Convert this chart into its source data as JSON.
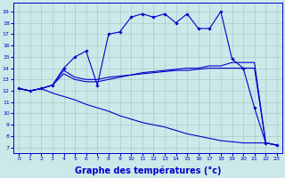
{
  "background_color": "#cce8e8",
  "grid_color": "#aacccc",
  "line_color": "#0000cc",
  "xlabel": "Graphe des températures (°c)",
  "xlabel_fontsize": 7,
  "xlim": [
    -0.5,
    23.5
  ],
  "ylim": [
    6.5,
    19.8
  ],
  "yticks": [
    7,
    8,
    9,
    10,
    11,
    12,
    13,
    14,
    15,
    16,
    17,
    18,
    19
  ],
  "xticks": [
    0,
    1,
    2,
    3,
    4,
    5,
    6,
    7,
    8,
    9,
    10,
    11,
    12,
    13,
    14,
    15,
    16,
    17,
    18,
    19,
    20,
    21,
    22,
    23
  ],
  "line_wiggly_x": [
    0,
    1,
    2,
    3,
    4,
    5,
    6,
    7,
    8,
    9,
    10,
    11,
    12,
    13,
    14,
    15,
    16,
    17,
    18,
    19,
    20,
    21,
    22,
    23
  ],
  "line_wiggly_y": [
    12.2,
    12.0,
    12.2,
    12.5,
    14.0,
    15.0,
    15.5,
    12.5,
    17.0,
    17.2,
    18.5,
    18.8,
    18.5,
    18.8,
    18.0,
    18.8,
    17.5,
    17.5,
    19.0,
    14.8,
    14.0,
    10.5,
    7.4,
    7.2
  ],
  "line_trend1_x": [
    0,
    1,
    2,
    3,
    4,
    5,
    6,
    7,
    8,
    9,
    10,
    11,
    12,
    13,
    14,
    15,
    16,
    17,
    18,
    19,
    20,
    21,
    22,
    23
  ],
  "line_trend1_y": [
    12.2,
    12.0,
    12.2,
    12.5,
    13.8,
    13.2,
    13.0,
    13.0,
    13.2,
    13.3,
    13.4,
    13.5,
    13.6,
    13.7,
    13.8,
    13.8,
    13.9,
    14.0,
    14.0,
    14.0,
    14.0,
    14.0,
    7.4,
    7.2
  ],
  "line_trend2_x": [
    0,
    1,
    2,
    3,
    4,
    5,
    6,
    7,
    8,
    9,
    10,
    11,
    12,
    13,
    14,
    15,
    16,
    17,
    18,
    19,
    20,
    21,
    22,
    23
  ],
  "line_trend2_y": [
    12.2,
    12.0,
    12.2,
    12.5,
    13.5,
    13.0,
    12.8,
    12.8,
    13.0,
    13.2,
    13.4,
    13.6,
    13.7,
    13.8,
    13.9,
    14.0,
    14.0,
    14.2,
    14.2,
    14.5,
    14.5,
    14.5,
    7.4,
    7.2
  ],
  "line_decline_x": [
    0,
    1,
    2,
    3,
    4,
    5,
    6,
    7,
    8,
    9,
    10,
    11,
    12,
    13,
    14,
    15,
    16,
    17,
    18,
    19,
    20,
    21,
    22,
    23
  ],
  "line_decline_y": [
    12.2,
    12.0,
    12.2,
    11.8,
    11.5,
    11.2,
    10.8,
    10.5,
    10.2,
    9.8,
    9.5,
    9.2,
    9.0,
    8.8,
    8.5,
    8.2,
    8.0,
    7.8,
    7.6,
    7.5,
    7.4,
    7.4,
    7.4,
    7.2
  ]
}
